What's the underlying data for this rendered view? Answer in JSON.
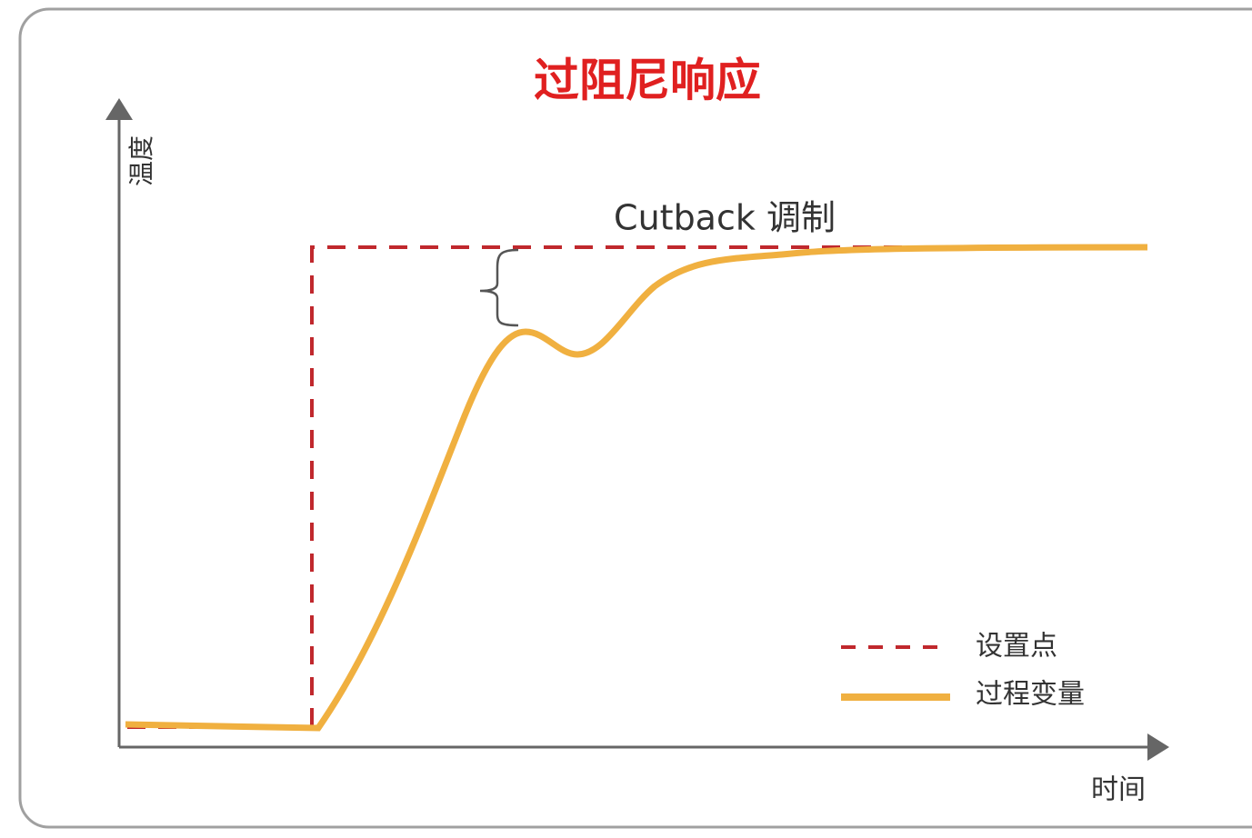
{
  "title": "过阻尼响应",
  "y_axis_label": "温度",
  "x_axis_label": "时间",
  "annotation": "Cutback 调制",
  "legend": {
    "setpoint": "设置点",
    "process_variable": "过程变量"
  }
}
